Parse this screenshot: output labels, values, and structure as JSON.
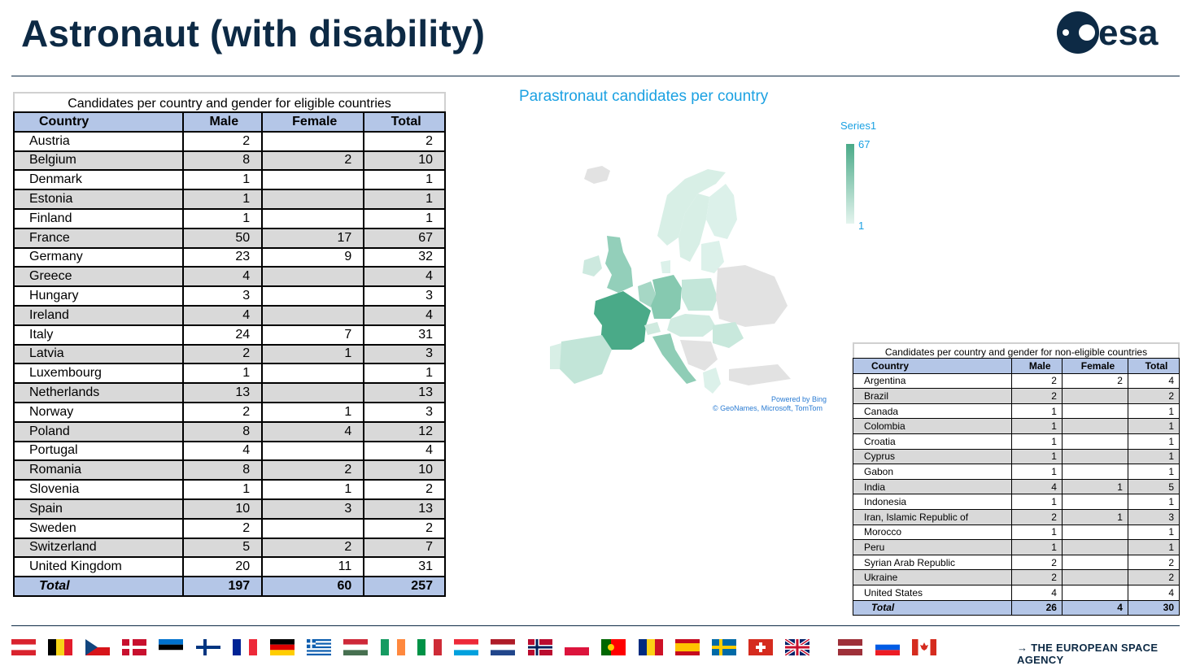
{
  "title": "Astronaut (with disability)",
  "logo_text": "esa",
  "footer_text": "→ THE EUROPEAN SPACE AGENCY",
  "colors": {
    "accent": "#0d2a45",
    "header_fill": "#b4c6e7",
    "alt_row": "#d9d9d9",
    "map_max": "#4aaa88",
    "map_title": "#1ba1e2"
  },
  "eligible_table": {
    "caption": "Candidates per country and gender for eligible countries",
    "headers": [
      "Country",
      "Male",
      "Female",
      "Total"
    ],
    "rows": [
      [
        "Austria",
        "2",
        "",
        "2"
      ],
      [
        "Belgium",
        "8",
        "2",
        "10"
      ],
      [
        "Denmark",
        "1",
        "",
        "1"
      ],
      [
        "Estonia",
        "1",
        "",
        "1"
      ],
      [
        "Finland",
        "1",
        "",
        "1"
      ],
      [
        "France",
        "50",
        "17",
        "67"
      ],
      [
        "Germany",
        "23",
        "9",
        "32"
      ],
      [
        "Greece",
        "4",
        "",
        "4"
      ],
      [
        "Hungary",
        "3",
        "",
        "3"
      ],
      [
        "Ireland",
        "4",
        "",
        "4"
      ],
      [
        "Italy",
        "24",
        "7",
        "31"
      ],
      [
        "Latvia",
        "2",
        "1",
        "3"
      ],
      [
        "Luxembourg",
        "1",
        "",
        "1"
      ],
      [
        "Netherlands",
        "13",
        "",
        "13"
      ],
      [
        "Norway",
        "2",
        "1",
        "3"
      ],
      [
        "Poland",
        "8",
        "4",
        "12"
      ],
      [
        "Portugal",
        "4",
        "",
        "4"
      ],
      [
        "Romania",
        "8",
        "2",
        "10"
      ],
      [
        "Slovenia",
        "1",
        "1",
        "2"
      ],
      [
        "Spain",
        "10",
        "3",
        "13"
      ],
      [
        "Sweden",
        "2",
        "",
        "2"
      ],
      [
        "Switzerland",
        "5",
        "2",
        "7"
      ],
      [
        "United Kingdom",
        "20",
        "11",
        "31"
      ]
    ],
    "total": [
      "Total",
      "197",
      "60",
      "257"
    ]
  },
  "non_eligible_table": {
    "caption": "Candidates per country and gender for non-eligible countries",
    "headers": [
      "Country",
      "Male",
      "Female",
      "Total"
    ],
    "rows": [
      [
        "Argentina",
        "2",
        "2",
        "4"
      ],
      [
        "Brazil",
        "2",
        "",
        "2"
      ],
      [
        "Canada",
        "1",
        "",
        "1"
      ],
      [
        "Colombia",
        "1",
        "",
        "1"
      ],
      [
        "Croatia",
        "1",
        "",
        "1"
      ],
      [
        "Cyprus",
        "1",
        "",
        "1"
      ],
      [
        "Gabon",
        "1",
        "",
        "1"
      ],
      [
        "India",
        "4",
        "1",
        "5"
      ],
      [
        "Indonesia",
        "1",
        "",
        "1"
      ],
      [
        "Iran, Islamic Republic of",
        "2",
        "1",
        "3"
      ],
      [
        "Morocco",
        "1",
        "",
        "1"
      ],
      [
        "Peru",
        "1",
        "",
        "1"
      ],
      [
        "Syrian Arab Republic",
        "2",
        "",
        "2"
      ],
      [
        "Ukraine",
        "2",
        "",
        "2"
      ],
      [
        "United States",
        "4",
        "",
        "4"
      ]
    ],
    "total": [
      "Total",
      "26",
      "4",
      "30"
    ]
  },
  "map": {
    "title": "Parastronaut candidates per country",
    "legend_title": "Series1",
    "legend_max": "67",
    "legend_min": "1",
    "credit_line1": "Powered by Bing",
    "credit_line2": "© GeoNames, Microsoft, TomTom"
  },
  "flags": [
    "austria-flag",
    "belgium-flag",
    "czechia-flag",
    "denmark-flag",
    "estonia-flag",
    "finland-flag",
    "france-flag",
    "germany-flag",
    "greece-flag",
    "hungary-flag",
    "ireland-flag",
    "italy-flag",
    "luxembourg-flag",
    "netherlands-flag",
    "norway-flag",
    "poland-flag",
    "portugal-flag",
    "romania-flag",
    "spain-flag",
    "sweden-flag",
    "switzerland-flag",
    "uk-flag",
    "latvia-flag",
    "slovenia-flag",
    "canada-flag"
  ]
}
